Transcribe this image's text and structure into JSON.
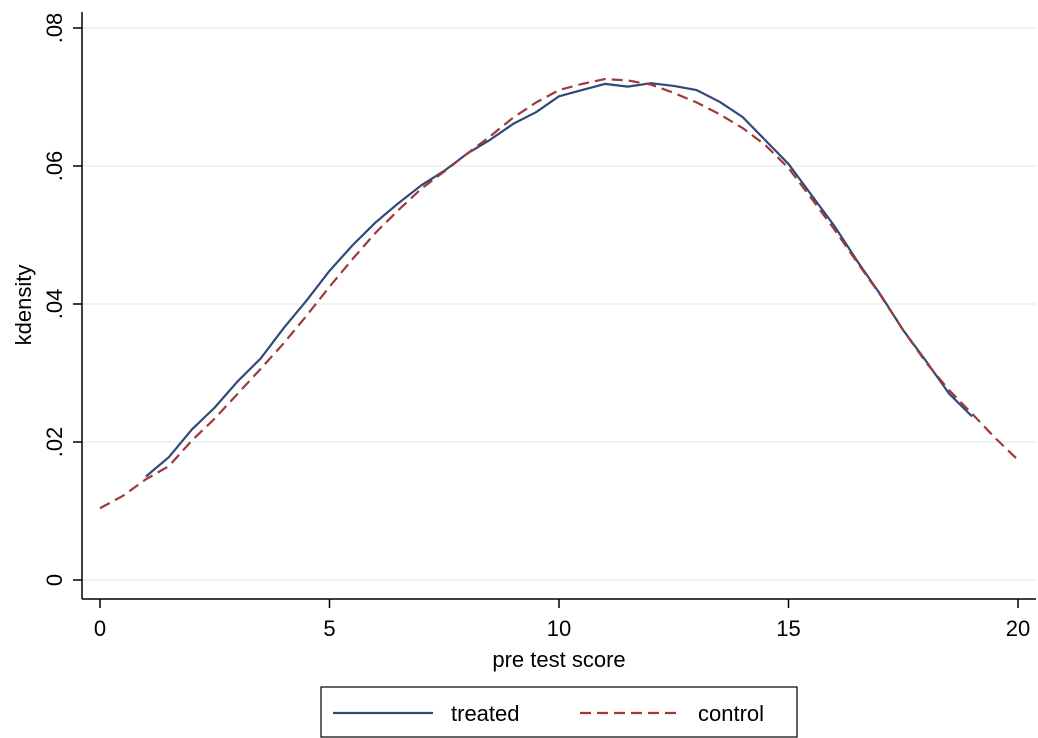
{
  "chart_data": {
    "type": "line",
    "title": "",
    "xlabel": "pre test score",
    "ylabel": "kdensity",
    "xlim": [
      0,
      20
    ],
    "ylim": [
      0,
      0.08
    ],
    "xticks": [
      0,
      5,
      10,
      15,
      20
    ],
    "xtick_labels": [
      "0",
      "5",
      "10",
      "15",
      "20"
    ],
    "yticks": [
      0,
      0.02,
      0.04,
      0.06,
      0.08
    ],
    "ytick_labels": [
      "0",
      ".02",
      ".04",
      ".06",
      ".08"
    ],
    "grid": "horizontal",
    "legend_position": "bottom",
    "series": [
      {
        "name": "treated",
        "color": "#2e4a78",
        "dash": "solid",
        "x": [
          1,
          1.5,
          2,
          2.5,
          3,
          3.5,
          4,
          4.5,
          5,
          5.5,
          6,
          6.5,
          7,
          7.5,
          8,
          8.5,
          9,
          9.5,
          10,
          10.5,
          11,
          11.5,
          12,
          12.5,
          13,
          13.5,
          14,
          14.5,
          15,
          15.5,
          16,
          16.5,
          17,
          17.5,
          18,
          18.5,
          19
        ],
        "y": [
          0.015,
          0.0178,
          0.0218,
          0.025,
          0.0288,
          0.0321,
          0.0365,
          0.0405,
          0.0448,
          0.0485,
          0.0518,
          0.0546,
          0.0572,
          0.0593,
          0.0618,
          0.0638,
          0.0661,
          0.0678,
          0.0701,
          0.071,
          0.0719,
          0.0715,
          0.072,
          0.0716,
          0.071,
          0.0693,
          0.0671,
          0.0637,
          0.0603,
          0.0558,
          0.0513,
          0.0462,
          0.0414,
          0.0362,
          0.0317,
          0.027,
          0.0237
        ]
      },
      {
        "name": "control",
        "color": "#9e3a3a",
        "dash": "dashed",
        "x": [
          0,
          0.5,
          1,
          1.5,
          2,
          2.5,
          3,
          3.5,
          4,
          4.5,
          5,
          5.5,
          6,
          6.5,
          7,
          7.5,
          8,
          8.5,
          9,
          9.5,
          10,
          10.5,
          11,
          11.5,
          12,
          12.5,
          13,
          13.5,
          14,
          14.5,
          15,
          15.5,
          16,
          16.5,
          17,
          17.5,
          18,
          18.5,
          19,
          19.5,
          20
        ],
        "y": [
          0.0104,
          0.0122,
          0.0146,
          0.0165,
          0.0202,
          0.0234,
          0.027,
          0.0306,
          0.0343,
          0.0383,
          0.0425,
          0.0465,
          0.0503,
          0.0536,
          0.0567,
          0.0592,
          0.0618,
          0.0643,
          0.067,
          0.0692,
          0.071,
          0.0719,
          0.0726,
          0.0724,
          0.0718,
          0.0706,
          0.0692,
          0.0675,
          0.0655,
          0.063,
          0.0597,
          0.0553,
          0.0508,
          0.046,
          0.0413,
          0.0362,
          0.0315,
          0.0275,
          0.0241,
          0.0206,
          0.0174
        ]
      }
    ]
  }
}
